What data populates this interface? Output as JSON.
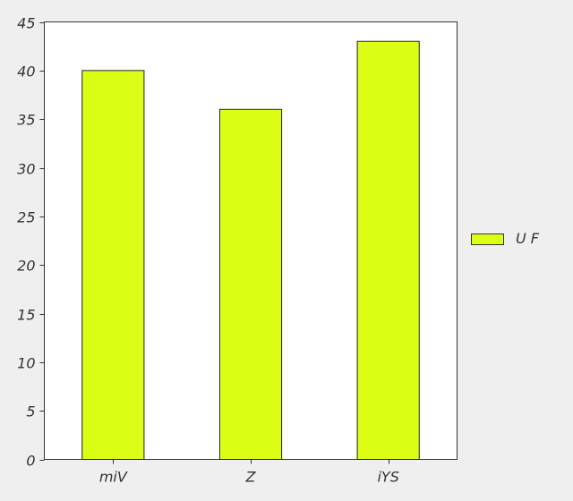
{
  "chart_data": {
    "type": "bar",
    "categories": [
      "miV",
      "Z",
      "iYS"
    ],
    "series": [
      {
        "name": "U F",
        "values": [
          40,
          36,
          43
        ],
        "color": "#ddff16"
      }
    ],
    "ylim": [
      0,
      45
    ],
    "yticks": [
      0,
      5,
      10,
      15,
      20,
      25,
      30,
      35,
      40,
      45
    ],
    "grid": false,
    "legend": "right"
  }
}
